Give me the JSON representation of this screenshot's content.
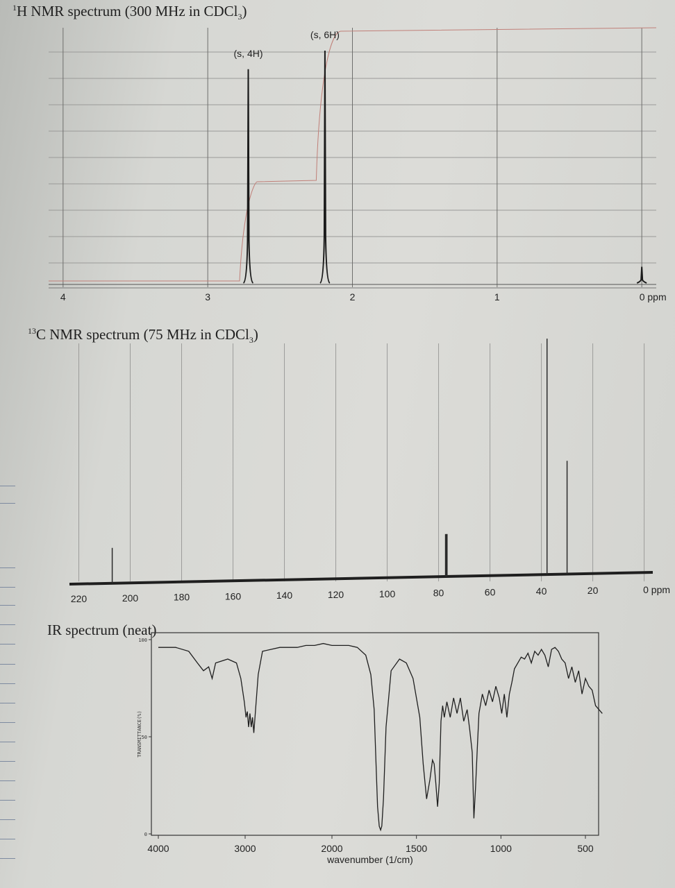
{
  "titles": {
    "h_nmr_sup": "1",
    "h_nmr_main": "H NMR spectrum (300 MHz in CDCl",
    "h_nmr_sub": "3",
    "h_nmr_end": ")",
    "c_nmr_sup": "13",
    "c_nmr_main": "C NMR spectrum (75 MHz in CDCl",
    "c_nmr_sub": "3",
    "c_nmr_end": ")",
    "ir": "IR spectrum (neat)"
  },
  "chart_data": [
    {
      "type": "line",
      "title": "1H NMR spectrum (300 MHz in CDCl3)",
      "xlabel": "ppm",
      "xlim": [
        4.1,
        -0.1
      ],
      "x_ticks": [
        "4",
        "3",
        "2",
        "1",
        "0 ppm"
      ],
      "grid": true,
      "peaks": [
        {
          "ppm": 2.72,
          "label": "(s, 4H)",
          "intensity": 0.92
        },
        {
          "ppm": 2.19,
          "label": "(s, 6H)",
          "intensity": 1.0
        },
        {
          "ppm": 0.0,
          "label": "",
          "intensity": 0.07
        }
      ]
    },
    {
      "type": "line",
      "title": "13C NMR spectrum (75 MHz in CDCl3)",
      "xlabel": "ppm",
      "xlim": [
        225,
        -2
      ],
      "x_ticks": [
        "220",
        "200",
        "180",
        "160",
        "140",
        "120",
        "100",
        "80",
        "60",
        "40",
        "20",
        "0 ppm"
      ],
      "grid": true,
      "peaks": [
        {
          "ppm": 207,
          "intensity": 0.15
        },
        {
          "ppm": 77.3,
          "intensity": 0.18
        },
        {
          "ppm": 77.0,
          "intensity": 0.18
        },
        {
          "ppm": 76.7,
          "intensity": 0.18
        },
        {
          "ppm": 37.8,
          "intensity": 1.0
        },
        {
          "ppm": 30.0,
          "intensity": 0.48
        }
      ]
    },
    {
      "type": "line",
      "title": "IR spectrum (neat)",
      "xlabel": "wavenumber (1/cm)",
      "ylabel": "TRANSMITTANCE(%)",
      "xlim": [
        4000,
        400
      ],
      "ylim": [
        0,
        100
      ],
      "x_ticks": [
        "4000",
        "3000",
        "2000",
        "1500",
        "1000",
        "500"
      ],
      "y_ticks": [
        "100",
        "50",
        "0"
      ],
      "series": [
        {
          "x": [
            4000,
            3800,
            3650,
            3550,
            3480,
            3420,
            3380,
            3340,
            3200,
            3100,
            3050,
            3010,
            2990,
            2975,
            2960,
            2945,
            2930,
            2915,
            2900,
            2850,
            2800,
            2600,
            2400,
            2300,
            2200,
            2100,
            2000,
            1900,
            1850,
            1800,
            1770,
            1750,
            1740,
            1730,
            1720,
            1712,
            1705,
            1695,
            1680,
            1650,
            1600,
            1560,
            1520,
            1480,
            1460,
            1440,
            1420,
            1405,
            1395,
            1385,
            1375,
            1365,
            1355,
            1345,
            1335,
            1320,
            1300,
            1280,
            1260,
            1240,
            1220,
            1200,
            1185,
            1170,
            1160,
            1150,
            1140,
            1130,
            1110,
            1090,
            1070,
            1050,
            1030,
            1010,
            995,
            980,
            965,
            950,
            935,
            920,
            900,
            880,
            860,
            840,
            820,
            800,
            780,
            760,
            740,
            720,
            700,
            680,
            660,
            640,
            620,
            600,
            580,
            560,
            540,
            520,
            500,
            480,
            460,
            440,
            420,
            400
          ],
          "y": [
            96,
            96,
            94,
            88,
            84,
            86,
            80,
            88,
            90,
            88,
            80,
            68,
            60,
            63,
            55,
            62,
            55,
            60,
            52,
            82,
            94,
            96,
            96,
            97,
            97,
            98,
            97,
            97,
            96,
            92,
            82,
            64,
            38,
            14,
            4,
            2,
            4,
            18,
            55,
            84,
            90,
            88,
            80,
            60,
            36,
            18,
            28,
            38,
            36,
            26,
            14,
            26,
            58,
            66,
            60,
            68,
            60,
            70,
            62,
            70,
            58,
            64,
            54,
            42,
            8,
            24,
            44,
            62,
            72,
            66,
            74,
            68,
            76,
            70,
            62,
            72,
            60,
            72,
            78,
            85,
            88,
            91,
            90,
            93,
            88,
            94,
            92,
            95,
            92,
            86,
            95,
            96,
            94,
            90,
            88,
            80,
            86,
            78,
            84,
            72,
            80,
            76,
            74,
            66,
            64,
            62
          ]
        }
      ]
    }
  ]
}
